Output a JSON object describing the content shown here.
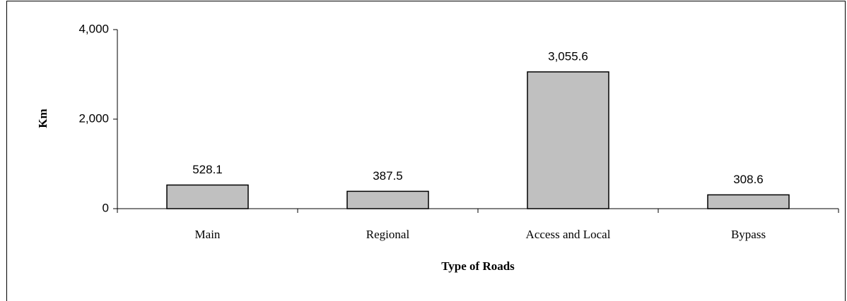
{
  "chart_data": {
    "type": "bar",
    "categories": [
      "Main",
      "Regional",
      "Access and Local",
      "Bypass"
    ],
    "values": [
      528.1,
      387.5,
      3055.6,
      308.6
    ],
    "value_labels": [
      "528.1",
      "387.5",
      "3,055.6",
      "308.6"
    ],
    "color": "#c0c0c0",
    "xlabel": "Type of Roads",
    "ylabel": "Km",
    "ylim": [
      0,
      4000
    ],
    "yticks": [
      0,
      {
        "value": 2000,
        "label": "2,000"
      },
      {
        "value": 4000,
        "label": "4,000"
      }
    ],
    "grid": false
  }
}
